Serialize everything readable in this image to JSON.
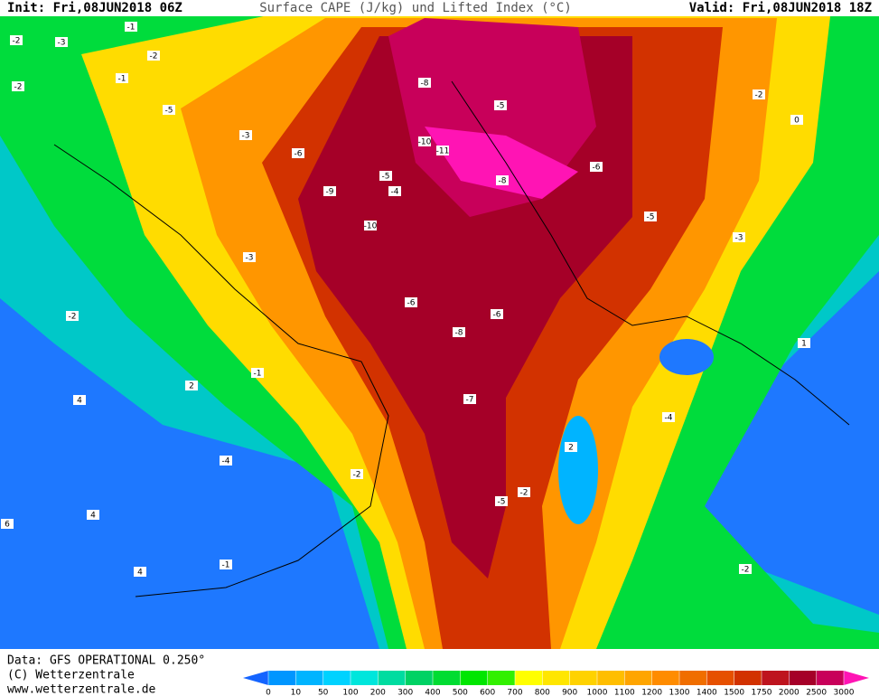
{
  "header": {
    "init": "Init: Fri,08JUN2018 06Z",
    "title": "Surface CAPE (J/kg) und Lifted Index (°C)",
    "valid": "Valid: Fri,08JUN2018 18Z"
  },
  "footer": {
    "data": "Data: GFS OPERATIONAL 0.250°",
    "copyright": "(C) Wetterzentrale",
    "url": "www.wetterzentrale.de"
  },
  "colorbar": {
    "ticks": [
      0,
      10,
      50,
      100,
      200,
      300,
      400,
      500,
      600,
      700,
      800,
      900,
      1000,
      1100,
      1200,
      1300,
      1400,
      1500,
      1750,
      2000,
      2500,
      3000
    ],
    "colors": [
      "#1464ff",
      "#0096ff",
      "#00b4ff",
      "#00d2ff",
      "#00e6dc",
      "#00dca0",
      "#00d264",
      "#00dc32",
      "#00e600",
      "#32f000",
      "#ffff00",
      "#ffe600",
      "#ffd200",
      "#ffbe00",
      "#ffa500",
      "#ff8c00",
      "#f06e00",
      "#e65000",
      "#d23200",
      "#be141e",
      "#a50028",
      "#c8005a",
      "#ff14b4"
    ]
  },
  "map": {
    "contour_labels": [
      -2,
      -3,
      -1,
      -2,
      -1,
      -2,
      -5,
      -3,
      -6,
      -8,
      -5,
      -8,
      -10,
      -11,
      -6,
      -9,
      -10,
      -5,
      -4,
      -3,
      -6,
      -6,
      -8,
      -7,
      -5,
      -2,
      0,
      -2,
      2,
      4,
      -4,
      -2,
      -5,
      4,
      -2,
      2,
      6,
      4,
      -1,
      -4,
      -2,
      -3,
      -1,
      1
    ]
  }
}
